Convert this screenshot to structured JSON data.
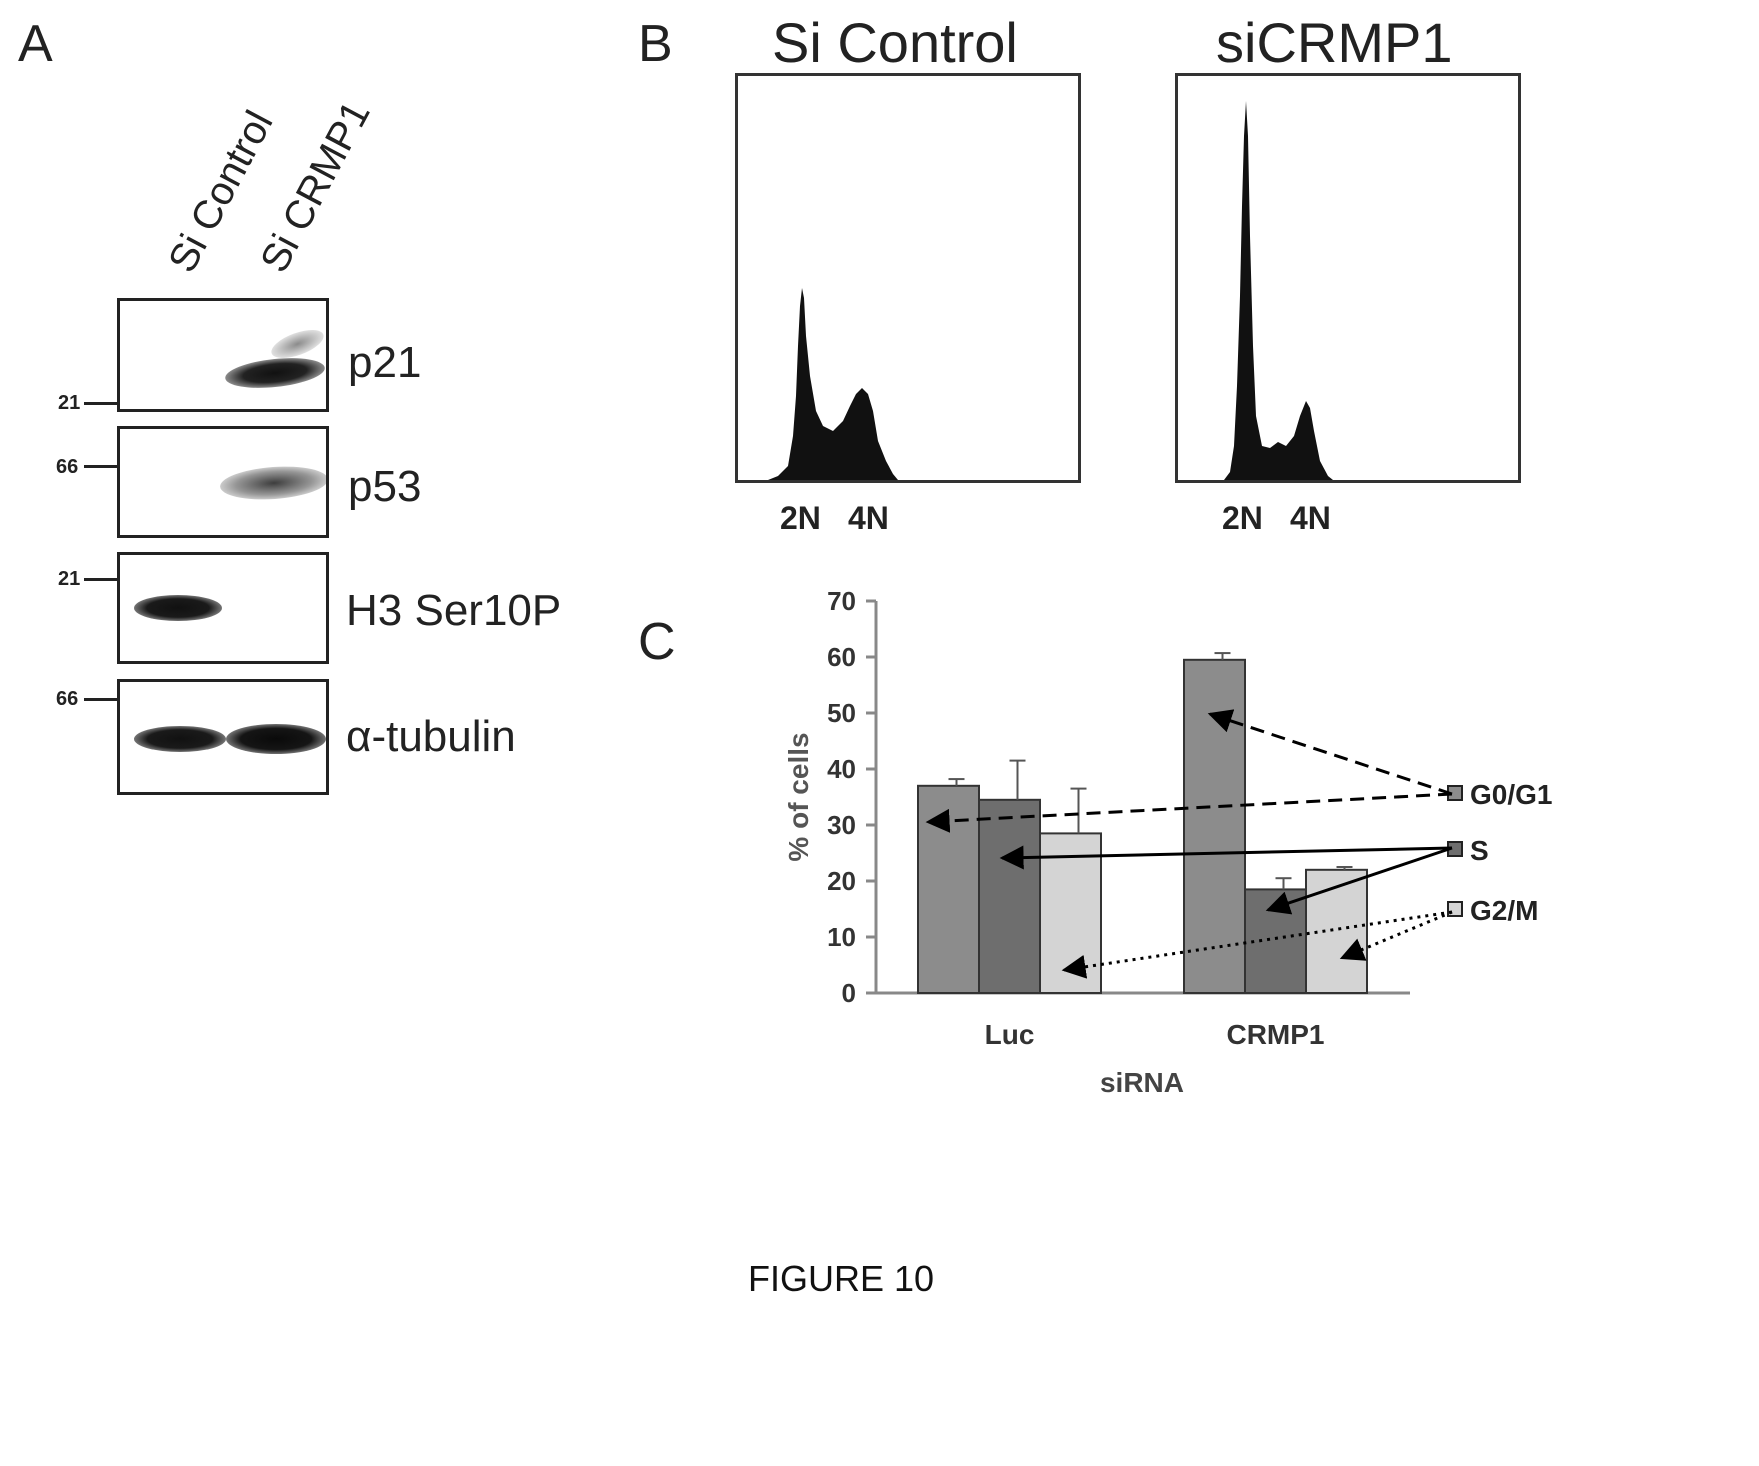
{
  "panel_a": {
    "letter": "A",
    "lanes": [
      "Si Control",
      "Si CRMP1"
    ],
    "blots": [
      {
        "protein": "p21",
        "marker": "21"
      },
      {
        "protein": "p53",
        "marker": "66"
      },
      {
        "protein": "H3 Ser10P",
        "marker": "21"
      },
      {
        "protein": "α-tubulin",
        "marker": "66"
      }
    ]
  },
  "panel_b": {
    "letter": "B",
    "histograms": [
      {
        "title": "Si Control",
        "labels": [
          "2N",
          "4N"
        ]
      },
      {
        "title": "siCRMP1",
        "labels": [
          "2N",
          "4N"
        ]
      }
    ]
  },
  "panel_c": {
    "letter": "C"
  },
  "chart_data": {
    "type": "bar",
    "xlabel": "siRNA",
    "ylabel": "% of cells",
    "ylim": [
      0,
      70
    ],
    "yticks": [
      0,
      10,
      20,
      30,
      40,
      50,
      60,
      70
    ],
    "categories": [
      "Luc",
      "CRMP1"
    ],
    "series": [
      {
        "name": "G0/G1",
        "values": [
          37,
          59.5
        ],
        "errors": [
          1.2,
          1.2
        ],
        "color": "#8c8c8c"
      },
      {
        "name": "S",
        "values": [
          34.5,
          18.5
        ],
        "errors": [
          7,
          2
        ],
        "color": "#6e6e6e"
      },
      {
        "name": "G2/M",
        "values": [
          28.5,
          22
        ],
        "errors": [
          8,
          0.5
        ],
        "color": "#d4d4d4"
      }
    ],
    "legend_position": "right"
  },
  "caption": "FIGURE 10"
}
